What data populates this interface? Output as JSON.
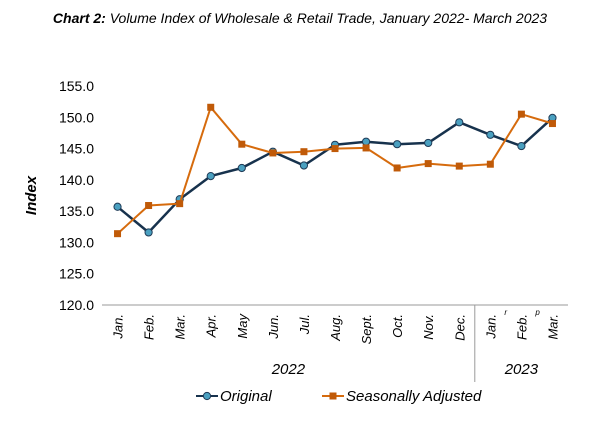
{
  "title": {
    "prefix": "Chart 2:",
    "text": "Volume Index of Wholesale & Retail Trade, January 2022- March 2023"
  },
  "chart_data": {
    "type": "line",
    "title": "Chart 2: Volume Index of Wholesale & Retail Trade, January 2022- March 2023",
    "ylabel": "Index",
    "xlabel": "",
    "ylim": [
      120,
      155
    ],
    "y_ticks": [
      "155.0",
      "150.0",
      "145.0",
      "140.0",
      "135.0",
      "130.0",
      "125.0",
      "120.0"
    ],
    "categories": [
      "Jan.",
      "Feb.",
      "Mar.",
      "Apr.",
      "May",
      "Jun.",
      "Jul.",
      "Aug.",
      "Sept.",
      "Oct.",
      "Nov.",
      "Dec.",
      "Jan.",
      "Feb.",
      "Mar."
    ],
    "category_groups": [
      {
        "label": "2022",
        "count": 12
      },
      {
        "label": "2023",
        "count": 3
      }
    ],
    "superscripts": [
      {
        "index": 12,
        "text": "r"
      },
      {
        "index": 13,
        "text": "p"
      }
    ],
    "series": [
      {
        "name": "Original",
        "color": "#17324d",
        "marker": "circle",
        "marker_color": "#4aa0c0",
        "values": [
          135.7,
          131.6,
          136.9,
          140.6,
          141.9,
          144.5,
          142.3,
          145.6,
          146.1,
          145.7,
          145.9,
          149.2,
          147.2,
          145.4,
          149.9
        ]
      },
      {
        "name": "Seasonally Adjusted",
        "color": "#d66b0d",
        "marker": "square",
        "marker_color": "#c05a08",
        "values": [
          131.4,
          135.9,
          136.2,
          151.6,
          145.7,
          144.3,
          144.5,
          145.0,
          145.1,
          141.9,
          142.6,
          142.2,
          142.5,
          150.5,
          149.0
        ]
      }
    ],
    "grid": false,
    "legend": "bottom"
  }
}
